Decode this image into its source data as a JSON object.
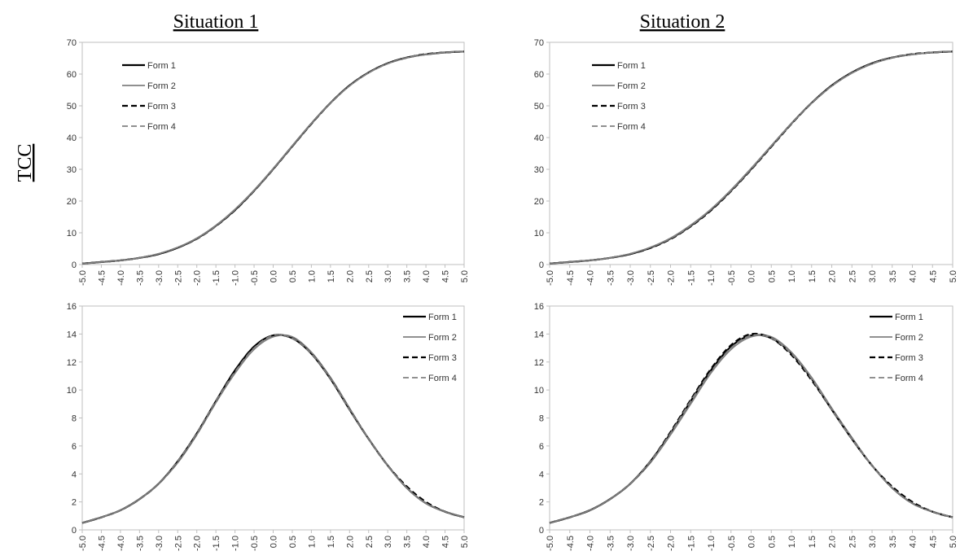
{
  "headers": {
    "columns": [
      "Situation 1",
      "Situation 2"
    ],
    "rows": [
      "TCC",
      ""
    ]
  },
  "legend_labels": [
    "Form 1",
    "Form 2",
    "Form 3",
    "Form 4"
  ],
  "colors": {
    "form1": "#000000",
    "form2": "#808080",
    "form3": "#000000",
    "form4": "#808080",
    "frame": "#bfbfbf"
  },
  "chart_data": [
    {
      "type": "line",
      "title": "Situation 1",
      "ylabel": "TCC",
      "xlabel": "",
      "ylim": [
        0,
        70
      ],
      "yticks": [
        "0",
        "10",
        "20",
        "30",
        "40",
        "50",
        "60",
        "70"
      ],
      "xticks": [
        "-5.0",
        "-4.5",
        "-4.0",
        "-3.5",
        "-3.0",
        "-2.5",
        "-2.0",
        "-1.5",
        "-1.0",
        "-0.5",
        "0.0",
        "0.5",
        "1.0",
        "1.5",
        "2.0",
        "2.5",
        "3.0",
        "3.5",
        "4.0",
        "4.5",
        "5.0"
      ],
      "legend_position": "top-left",
      "x": [
        -5.0,
        -4.5,
        -4.0,
        -3.5,
        -3.0,
        -2.5,
        -2.0,
        -1.5,
        -1.0,
        -0.5,
        0.0,
        0.5,
        1.0,
        1.5,
        2.0,
        2.5,
        3.0,
        3.5,
        4.0,
        4.5,
        5.0
      ],
      "series": [
        {
          "name": "Form 1",
          "values": [
            0.3,
            0.8,
            1.3,
            2.1,
            3.3,
            5.3,
            8.2,
            12.2,
            17.2,
            23.3,
            30.1,
            37.3,
            44.4,
            50.9,
            56.4,
            60.5,
            63.4,
            65.2,
            66.2,
            66.8,
            67.1
          ]
        },
        {
          "name": "Form 2",
          "values": [
            0.3,
            0.8,
            1.3,
            2.1,
            3.4,
            5.4,
            8.3,
            12.3,
            17.4,
            23.4,
            30.2,
            37.4,
            44.4,
            50.9,
            56.3,
            60.4,
            63.3,
            65.1,
            66.2,
            66.8,
            67.1
          ]
        },
        {
          "name": "Form 3",
          "values": [
            0.3,
            0.8,
            1.3,
            2.1,
            3.3,
            5.3,
            8.1,
            12.1,
            17.1,
            23.2,
            30.0,
            37.2,
            44.3,
            50.9,
            56.4,
            60.5,
            63.4,
            65.2,
            66.3,
            66.8,
            67.1
          ]
        },
        {
          "name": "Form 4",
          "values": [
            0.3,
            0.8,
            1.3,
            2.1,
            3.4,
            5.4,
            8.2,
            12.2,
            17.3,
            23.3,
            30.1,
            37.3,
            44.4,
            50.9,
            56.3,
            60.4,
            63.3,
            65.2,
            66.2,
            66.8,
            67.1
          ]
        }
      ]
    },
    {
      "type": "line",
      "title": "Situation 2",
      "ylabel": "",
      "xlabel": "",
      "ylim": [
        0,
        70
      ],
      "yticks": [
        "0",
        "10",
        "20",
        "30",
        "40",
        "50",
        "60",
        "70"
      ],
      "xticks": [
        "-5.0",
        "-4.5",
        "-4.0",
        "-3.5",
        "-3.0",
        "-2.5",
        "-2.0",
        "-1.5",
        "-1.0",
        "-0.5",
        "0.0",
        "0.5",
        "1.0",
        "1.5",
        "2.0",
        "2.5",
        "3.0",
        "3.5",
        "4.0",
        "4.5",
        "5.0"
      ],
      "legend_position": "top-left",
      "x": [
        -5.0,
        -4.5,
        -4.0,
        -3.5,
        -3.0,
        -2.5,
        -2.0,
        -1.5,
        -1.0,
        -0.5,
        0.0,
        0.5,
        1.0,
        1.5,
        2.0,
        2.5,
        3.0,
        3.5,
        4.0,
        4.5,
        5.0
      ],
      "series": [
        {
          "name": "Form 1",
          "values": [
            0.3,
            0.8,
            1.3,
            2.1,
            3.3,
            5.3,
            8.2,
            12.2,
            17.2,
            23.3,
            30.1,
            37.3,
            44.4,
            50.9,
            56.4,
            60.5,
            63.4,
            65.2,
            66.2,
            66.8,
            67.1
          ]
        },
        {
          "name": "Form 2",
          "values": [
            0.3,
            0.8,
            1.3,
            2.1,
            3.4,
            5.4,
            8.3,
            12.4,
            17.4,
            23.5,
            30.3,
            37.4,
            44.4,
            50.8,
            56.2,
            60.3,
            63.2,
            65.1,
            66.2,
            66.8,
            67.1
          ]
        },
        {
          "name": "Form 3",
          "values": [
            0.3,
            0.8,
            1.3,
            2.1,
            3.3,
            5.2,
            8.0,
            12.0,
            17.0,
            23.1,
            29.9,
            37.1,
            44.3,
            50.9,
            56.4,
            60.5,
            63.4,
            65.2,
            66.3,
            66.8,
            67.1
          ]
        },
        {
          "name": "Form 4",
          "values": [
            0.3,
            0.8,
            1.3,
            2.1,
            3.4,
            5.4,
            8.2,
            12.2,
            17.3,
            23.3,
            30.1,
            37.3,
            44.4,
            50.9,
            56.3,
            60.4,
            63.3,
            65.2,
            66.2,
            66.8,
            67.1
          ]
        }
      ]
    },
    {
      "type": "line",
      "title": "",
      "ylabel": "",
      "xlabel": "",
      "ylim": [
        0,
        16
      ],
      "yticks": [
        "0",
        "2",
        "4",
        "6",
        "8",
        "10",
        "12",
        "14",
        "16"
      ],
      "xticks": [
        "-5.0",
        "-4.5",
        "-4.0",
        "-3.5",
        "-3.0",
        "-2.5",
        "-2.0",
        "-1.5",
        "-1.0",
        "-0.5",
        "0.0",
        "0.5",
        "1.0",
        "1.5",
        "2.0",
        "2.5",
        "3.0",
        "3.5",
        "4.0",
        "4.5",
        "5.0"
      ],
      "legend_position": "top-right",
      "x": [
        -5.0,
        -4.5,
        -4.0,
        -3.5,
        -3.0,
        -2.5,
        -2.0,
        -1.5,
        -1.0,
        -0.5,
        0.0,
        0.5,
        1.0,
        1.5,
        2.0,
        2.5,
        3.0,
        3.5,
        4.0,
        4.5,
        5.0
      ],
      "series": [
        {
          "name": "Form 1",
          "values": [
            0.5,
            0.9,
            1.4,
            2.2,
            3.3,
            4.9,
            6.9,
            9.2,
            11.4,
            13.1,
            13.9,
            13.7,
            12.6,
            10.8,
            8.6,
            6.5,
            4.6,
            3.0,
            1.9,
            1.3,
            0.9
          ]
        },
        {
          "name": "Form 2",
          "values": [
            0.5,
            0.9,
            1.4,
            2.2,
            3.3,
            4.8,
            6.8,
            9.1,
            11.2,
            12.9,
            13.8,
            13.8,
            12.7,
            10.9,
            8.7,
            6.5,
            4.6,
            3.0,
            1.9,
            1.3,
            0.9
          ]
        },
        {
          "name": "Form 3",
          "values": [
            0.5,
            0.9,
            1.4,
            2.2,
            3.3,
            4.9,
            6.9,
            9.2,
            11.4,
            13.1,
            13.9,
            13.7,
            12.6,
            10.8,
            8.6,
            6.5,
            4.6,
            3.1,
            2.0,
            1.3,
            0.9
          ]
        },
        {
          "name": "Form 4",
          "values": [
            0.5,
            0.9,
            1.4,
            2.2,
            3.3,
            4.9,
            6.9,
            9.2,
            11.3,
            13.0,
            13.9,
            13.7,
            12.6,
            10.8,
            8.6,
            6.5,
            4.6,
            3.0,
            1.9,
            1.3,
            0.9
          ]
        }
      ]
    },
    {
      "type": "line",
      "title": "",
      "ylabel": "",
      "xlabel": "",
      "ylim": [
        0,
        16
      ],
      "yticks": [
        "0",
        "2",
        "4",
        "6",
        "8",
        "10",
        "12",
        "14",
        "16"
      ],
      "xticks": [
        "-5.0",
        "-4.5",
        "-4.0",
        "-3.5",
        "-3.0",
        "-2.5",
        "-2.0",
        "-1.5",
        "-1.0",
        "-0.5",
        "0.0",
        "0.5",
        "1.0",
        "1.5",
        "2.0",
        "2.5",
        "3.0",
        "3.5",
        "4.0",
        "4.5",
        "5.0"
      ],
      "legend_position": "top-right",
      "x": [
        -5.0,
        -4.5,
        -4.0,
        -3.5,
        -3.0,
        -2.5,
        -2.0,
        -1.5,
        -1.0,
        -0.5,
        0.0,
        0.5,
        1.0,
        1.5,
        2.0,
        2.5,
        3.0,
        3.5,
        4.0,
        4.5,
        5.0
      ],
      "series": [
        {
          "name": "Form 1",
          "values": [
            0.5,
            0.9,
            1.4,
            2.2,
            3.3,
            4.9,
            6.9,
            9.2,
            11.4,
            13.1,
            13.9,
            13.7,
            12.6,
            10.8,
            8.6,
            6.5,
            4.6,
            3.0,
            1.9,
            1.3,
            0.9
          ]
        },
        {
          "name": "Form 2",
          "values": [
            0.5,
            0.9,
            1.4,
            2.2,
            3.3,
            4.8,
            6.8,
            9.0,
            11.2,
            12.9,
            13.8,
            13.8,
            12.7,
            10.9,
            8.7,
            6.6,
            4.6,
            3.0,
            1.9,
            1.3,
            0.9
          ]
        },
        {
          "name": "Form 3",
          "values": [
            0.5,
            0.9,
            1.4,
            2.2,
            3.3,
            4.9,
            7.0,
            9.3,
            11.5,
            13.2,
            14.0,
            13.7,
            12.5,
            10.7,
            8.6,
            6.5,
            4.6,
            3.1,
            2.0,
            1.3,
            0.9
          ]
        },
        {
          "name": "Form 4",
          "values": [
            0.5,
            0.9,
            1.4,
            2.2,
            3.3,
            4.9,
            6.9,
            9.2,
            11.3,
            13.0,
            13.9,
            13.7,
            12.6,
            10.8,
            8.6,
            6.5,
            4.6,
            3.0,
            1.9,
            1.3,
            0.9
          ]
        }
      ]
    }
  ]
}
